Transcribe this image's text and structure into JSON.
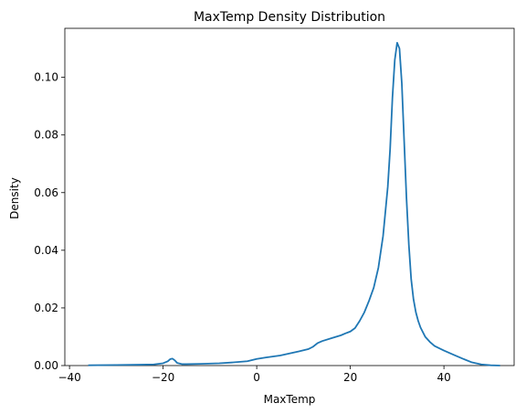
{
  "chart_data": {
    "type": "line",
    "title": "MaxTemp Density Distribution",
    "xlabel": "MaxTemp",
    "ylabel": "Density",
    "xlim": [
      -41,
      55
    ],
    "ylim": [
      0,
      0.117
    ],
    "xticks": [
      -40,
      -20,
      0,
      20,
      40
    ],
    "xtick_labels": [
      "−40",
      "−20",
      "0",
      "20",
      "40"
    ],
    "yticks": [
      0.0,
      0.02,
      0.04,
      0.06,
      0.08,
      0.1
    ],
    "ytick_labels": [
      "0.00",
      "0.02",
      "0.04",
      "0.06",
      "0.08",
      "0.10"
    ],
    "grid": false,
    "legend": "none",
    "series": [
      {
        "color": "#1f77b4",
        "x": [
          -36,
          -30,
          -25,
          -22,
          -20,
          -19,
          -18.5,
          -18,
          -17.5,
          -17,
          -16,
          -15,
          -12,
          -8,
          -5,
          -2,
          0,
          2,
          5,
          7,
          9,
          11,
          12,
          13,
          14,
          16,
          18,
          19,
          20,
          21,
          22,
          23,
          24,
          25,
          26,
          27,
          28,
          28.5,
          29,
          29.5,
          30,
          30.5,
          31,
          31.5,
          32,
          32.5,
          33,
          33.5,
          34,
          34.5,
          35,
          36,
          37,
          38,
          40,
          42,
          44,
          46,
          48,
          50,
          52
        ],
        "y": [
          0.0001,
          0.0002,
          0.0003,
          0.0004,
          0.0008,
          0.0015,
          0.0022,
          0.0024,
          0.0018,
          0.0009,
          0.0005,
          0.0005,
          0.0006,
          0.0008,
          0.0011,
          0.0015,
          0.0023,
          0.0028,
          0.0035,
          0.0042,
          0.0049,
          0.0057,
          0.0065,
          0.0078,
          0.0085,
          0.0095,
          0.0105,
          0.0112,
          0.0118,
          0.013,
          0.0155,
          0.0185,
          0.0225,
          0.027,
          0.034,
          0.045,
          0.062,
          0.075,
          0.093,
          0.106,
          0.112,
          0.11,
          0.098,
          0.078,
          0.058,
          0.042,
          0.03,
          0.023,
          0.0185,
          0.0155,
          0.0132,
          0.01,
          0.0082,
          0.0068,
          0.0052,
          0.0038,
          0.0024,
          0.0011,
          0.0004,
          0.0001,
          0.0
        ]
      }
    ]
  }
}
